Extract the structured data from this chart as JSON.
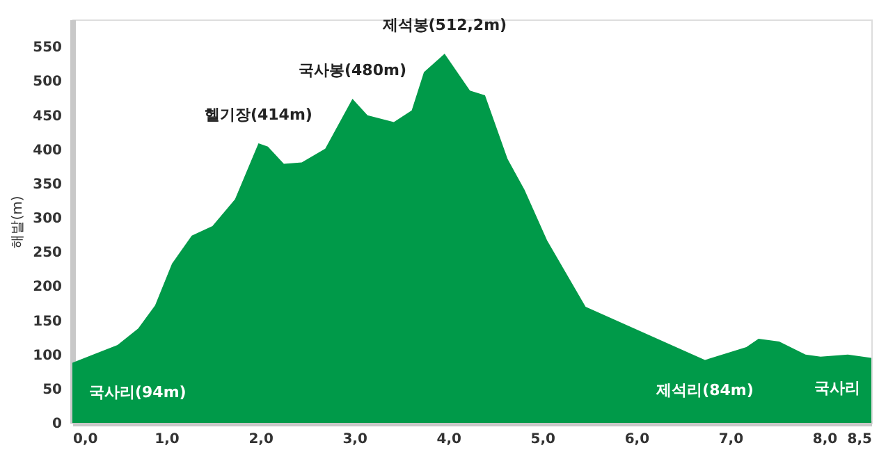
{
  "chart_data": {
    "type": "area",
    "ylabel": "해발(m)",
    "x": [
      0,
      0.48,
      0.7,
      0.88,
      1.06,
      1.27,
      1.49,
      1.73,
      1.98,
      2.08,
      2.25,
      2.44,
      2.69,
      2.98,
      3.14,
      3.42,
      3.61,
      3.74,
      3.96,
      4.23,
      4.39,
      4.63,
      4.81,
      5.05,
      5.46,
      6.73,
      7.17,
      7.3,
      7.52,
      7.8,
      7.96,
      8.25,
      8.5
    ],
    "series": [
      {
        "color": "#009a49",
        "values": [
          88,
          114,
          138,
          172,
          233,
          274,
          288,
          327,
          409,
          404,
          379,
          381,
          401,
          474,
          450,
          440,
          457,
          513,
          540,
          486,
          479,
          386,
          341,
          267,
          170,
          92,
          111,
          123,
          119,
          100,
          97,
          100,
          95
        ]
      }
    ],
    "xlim": [
      0,
      8.5
    ],
    "ylim": [
      0,
      590
    ],
    "xticks": [
      {
        "value": 0,
        "label": "0,0"
      },
      {
        "value": 1,
        "label": "1,0"
      },
      {
        "value": 2,
        "label": "2,0"
      },
      {
        "value": 3,
        "label": "3,0"
      },
      {
        "value": 4,
        "label": "4,0"
      },
      {
        "value": 5,
        "label": "5,0"
      },
      {
        "value": 6,
        "label": "6,0"
      },
      {
        "value": 7,
        "label": "7,0"
      },
      {
        "value": 8,
        "label": "8,0"
      },
      {
        "value": 8.5,
        "label": "8,5"
      }
    ],
    "yticks": [
      0,
      50,
      100,
      150,
      200,
      250,
      300,
      350,
      400,
      450,
      500,
      550
    ],
    "grid": false,
    "annotations": [
      {
        "text": "헬기장(414m)",
        "x": 1.98,
        "y": 409
      },
      {
        "text": "국사봉(480m)",
        "x": 2.98,
        "y": 474
      },
      {
        "text": "제석봉(512,2m)",
        "x": 3.96,
        "y": 540
      },
      {
        "text": "국사리(94m)",
        "x": 0,
        "y": 88
      },
      {
        "text": "제석리(84m)",
        "x": 6.73,
        "y": 92
      },
      {
        "text": "국사리",
        "x": 8.5,
        "y": 95
      }
    ]
  }
}
